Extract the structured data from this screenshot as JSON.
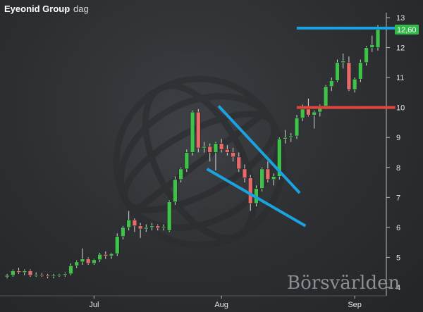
{
  "header": {
    "title": "Eyeonid Group",
    "separator": "-",
    "period": "dag"
  },
  "watermark": "Börsvärlden",
  "colors": {
    "up": "#3ec24a",
    "down": "#e66a6a",
    "wick": "#d8d8d8",
    "trend_line": "#1aa3e0",
    "resistance_line": "#e0463c",
    "price_tag_bg": "#33b84a",
    "axis": "#bdbdbd"
  },
  "chart_data": {
    "type": "candlestick",
    "title": "Eyeonid Group - dag",
    "ylim": [
      4,
      13
    ],
    "y_ticks": [
      "4",
      "5",
      "6",
      "7",
      "8",
      "9",
      "10",
      "11",
      "12",
      "13"
    ],
    "x_ticks": [
      {
        "label": "Jul",
        "index": 15
      },
      {
        "label": "Aug",
        "index": 37
      },
      {
        "label": "Sep",
        "index": 60
      }
    ],
    "last_price": "12,60",
    "ohlc": [
      [
        4.35,
        4.45,
        4.3,
        4.4
      ],
      [
        4.4,
        4.6,
        4.35,
        4.55
      ],
      [
        4.55,
        4.65,
        4.45,
        4.5
      ],
      [
        4.5,
        4.6,
        4.4,
        4.55
      ],
      [
        4.55,
        4.6,
        4.35,
        4.4
      ],
      [
        4.4,
        4.5,
        4.35,
        4.42
      ],
      [
        4.42,
        4.48,
        4.35,
        4.4
      ],
      [
        4.4,
        4.45,
        4.3,
        4.38
      ],
      [
        4.38,
        4.45,
        4.3,
        4.4
      ],
      [
        4.4,
        4.45,
        4.35,
        4.42
      ],
      [
        4.42,
        4.5,
        4.35,
        4.45
      ],
      [
        4.45,
        4.8,
        4.4,
        4.72
      ],
      [
        4.72,
        4.9,
        4.65,
        4.85
      ],
      [
        4.85,
        5.3,
        4.75,
        4.95
      ],
      [
        4.95,
        5.0,
        4.75,
        4.8
      ],
      [
        4.8,
        4.95,
        4.75,
        4.92
      ],
      [
        4.92,
        5.15,
        4.85,
        5.1
      ],
      [
        5.1,
        5.2,
        4.95,
        5.05
      ],
      [
        5.05,
        5.15,
        4.95,
        5.12
      ],
      [
        5.12,
        5.8,
        5.05,
        5.7
      ],
      [
        5.7,
        6.05,
        5.6,
        6.0
      ],
      [
        6.0,
        6.55,
        5.9,
        6.25
      ],
      [
        6.25,
        6.3,
        5.85,
        6.05
      ],
      [
        6.05,
        6.15,
        5.65,
        5.95
      ],
      [
        5.95,
        6.1,
        5.85,
        6.0
      ],
      [
        6.0,
        6.15,
        5.9,
        6.05
      ],
      [
        6.05,
        6.1,
        5.9,
        5.98
      ],
      [
        5.98,
        6.1,
        5.9,
        6.02
      ],
      [
        5.9,
        6.9,
        5.85,
        6.85
      ],
      [
        6.85,
        7.7,
        6.75,
        7.6
      ],
      [
        7.6,
        8.0,
        7.5,
        7.95
      ],
      [
        7.95,
        8.6,
        7.85,
        8.5
      ],
      [
        8.5,
        9.9,
        8.4,
        9.85
      ],
      [
        9.85,
        9.95,
        8.5,
        8.65
      ],
      [
        8.65,
        8.85,
        8.5,
        8.7
      ],
      [
        8.7,
        8.8,
        8.2,
        8.5
      ],
      [
        8.5,
        8.85,
        7.9,
        8.8
      ],
      [
        8.8,
        8.95,
        8.5,
        8.6
      ],
      [
        8.6,
        8.75,
        8.4,
        8.5
      ],
      [
        8.5,
        8.65,
        8.2,
        8.35
      ],
      [
        8.35,
        8.5,
        7.85,
        7.95
      ],
      [
        7.95,
        8.1,
        7.5,
        7.65
      ],
      [
        7.65,
        7.75,
        6.55,
        6.8
      ],
      [
        6.8,
        7.4,
        6.7,
        7.3
      ],
      [
        7.3,
        8.0,
        7.2,
        7.95
      ],
      [
        7.95,
        8.2,
        7.5,
        7.6
      ],
      [
        7.6,
        7.8,
        7.4,
        7.7
      ],
      [
        7.7,
        9.0,
        7.6,
        8.95
      ],
      [
        8.95,
        9.25,
        8.8,
        9.0
      ],
      [
        9.0,
        9.15,
        8.85,
        9.05
      ],
      [
        9.05,
        9.75,
        8.95,
        9.65
      ],
      [
        9.65,
        10.1,
        9.55,
        9.95
      ],
      [
        9.95,
        10.3,
        9.7,
        9.75
      ],
      [
        9.75,
        9.9,
        9.3,
        9.85
      ],
      [
        9.85,
        10.1,
        9.7,
        10.05
      ],
      [
        10.05,
        10.75,
        9.95,
        10.7
      ],
      [
        10.7,
        11.0,
        10.55,
        10.9
      ],
      [
        10.9,
        11.6,
        10.85,
        11.5
      ],
      [
        11.5,
        11.8,
        11.3,
        11.55
      ],
      [
        11.5,
        11.7,
        10.55,
        10.6
      ],
      [
        10.6,
        11.0,
        10.5,
        10.95
      ],
      [
        10.95,
        11.6,
        10.85,
        11.5
      ],
      [
        11.5,
        12.05,
        11.4,
        12.0
      ],
      [
        12.0,
        12.4,
        11.85,
        12.1
      ],
      [
        12.0,
        12.75,
        11.9,
        12.6
      ]
    ],
    "annotations": [
      {
        "type": "trend_line",
        "from": [
          36.5,
          10.05
        ],
        "to": [
          50.5,
          7.15
        ]
      },
      {
        "type": "trend_line",
        "from": [
          34.5,
          7.95
        ],
        "to": [
          51.5,
          6.05
        ]
      },
      {
        "type": "horizontal_line",
        "level": 10.0,
        "from": 50,
        "to": 67,
        "color": "resistance"
      },
      {
        "type": "horizontal_line",
        "level": 12.65,
        "from": 50,
        "to": 67,
        "color": "trend"
      }
    ]
  }
}
